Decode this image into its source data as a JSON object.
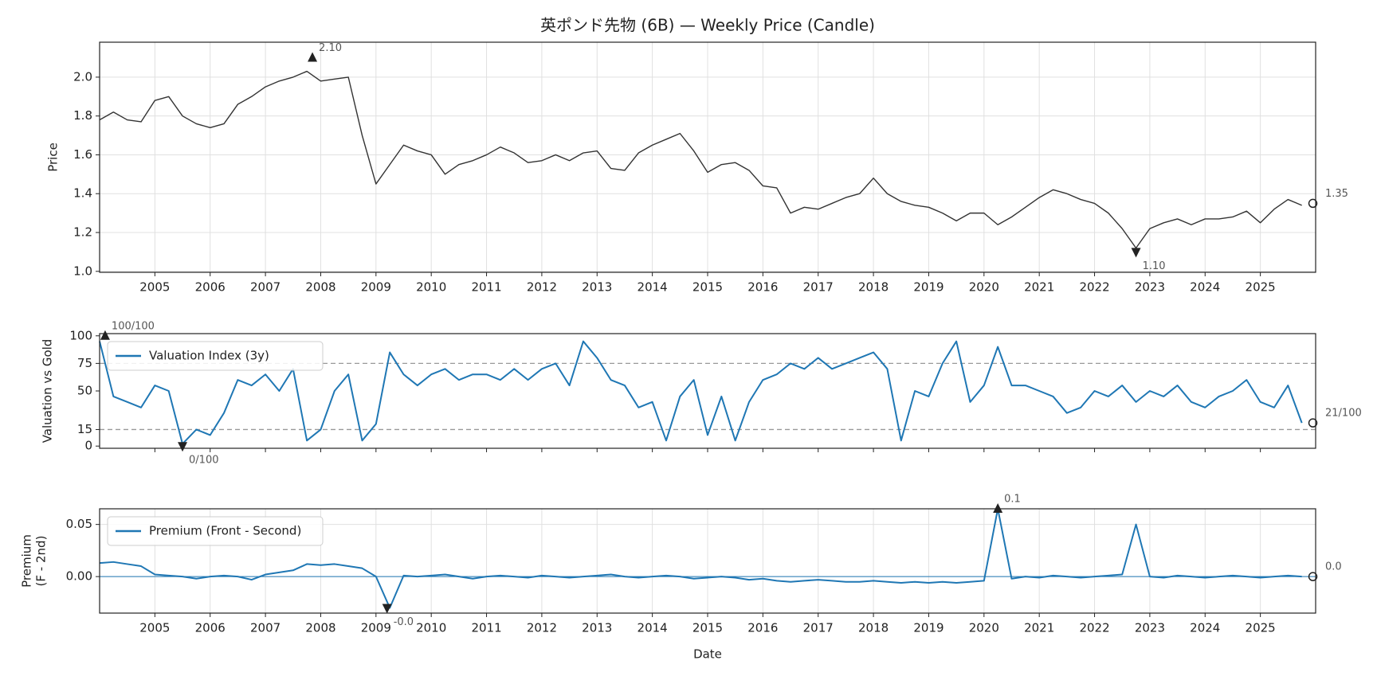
{
  "chart_data": [
    {
      "type": "line",
      "title": "英ポンド先物 (6B) — Weekly Price (Candle)",
      "ylabel": "Price",
      "xlim": [
        2004,
        2026
      ],
      "xticks": [
        2005,
        2006,
        2007,
        2008,
        2009,
        2010,
        2011,
        2012,
        2013,
        2014,
        2015,
        2016,
        2017,
        2018,
        2019,
        2020,
        2021,
        2022,
        2023,
        2024,
        2025
      ],
      "xtick_labels": true,
      "ylim": [
        0.995,
        2.18
      ],
      "yticks": [
        {
          "value": 1,
          "label": "1.0"
        },
        1.2,
        1.4,
        1.6,
        1.8,
        {
          "value": 2,
          "label": "2.0"
        }
      ],
      "grid": true,
      "x": [
        2004,
        2004.25,
        2004.5,
        2004.75,
        2005,
        2005.25,
        2005.5,
        2005.75,
        2006,
        2006.25,
        2006.5,
        2006.75,
        2007,
        2007.25,
        2007.5,
        2007.75,
        2008,
        2008.25,
        2008.5,
        2008.75,
        2009,
        2009.25,
        2009.5,
        2009.75,
        2010,
        2010.25,
        2010.5,
        2010.75,
        2011,
        2011.25,
        2011.5,
        2011.75,
        2012,
        2012.25,
        2012.5,
        2012.75,
        2013,
        2013.25,
        2013.5,
        2013.75,
        2014,
        2014.25,
        2014.5,
        2014.75,
        2015,
        2015.25,
        2015.5,
        2015.75,
        2016,
        2016.25,
        2016.5,
        2016.75,
        2017,
        2017.25,
        2017.5,
        2017.75,
        2018,
        2018.25,
        2018.5,
        2018.75,
        2019,
        2019.25,
        2019.5,
        2019.75,
        2020,
        2020.25,
        2020.5,
        2020.75,
        2021,
        2021.25,
        2021.5,
        2021.75,
        2022,
        2022.25,
        2022.5,
        2022.75,
        2023,
        2023.25,
        2023.5,
        2023.75,
        2024,
        2024.25,
        2024.5,
        2024.75,
        2025,
        2025.25,
        2025.5,
        2025.75
      ],
      "series": [
        {
          "color": "#333333",
          "values": [
            1.78,
            1.82,
            1.78,
            1.77,
            1.88,
            1.9,
            1.8,
            1.76,
            1.74,
            1.76,
            1.86,
            1.9,
            1.95,
            1.98,
            2.0,
            2.03,
            1.98,
            1.99,
            2.0,
            1.7,
            1.45,
            1.55,
            1.65,
            1.62,
            1.6,
            1.5,
            1.55,
            1.57,
            1.6,
            1.64,
            1.61,
            1.56,
            1.57,
            1.6,
            1.57,
            1.61,
            1.62,
            1.53,
            1.52,
            1.61,
            1.65,
            1.68,
            1.71,
            1.62,
            1.51,
            1.55,
            1.56,
            1.52,
            1.44,
            1.43,
            1.3,
            1.33,
            1.32,
            1.35,
            1.38,
            1.4,
            1.48,
            1.4,
            1.36,
            1.34,
            1.33,
            1.3,
            1.26,
            1.3,
            1.3,
            1.24,
            1.28,
            1.33,
            1.38,
            1.42,
            1.4,
            1.37,
            1.35,
            1.3,
            1.22,
            1.12,
            1.22,
            1.25,
            1.27,
            1.24,
            1.27,
            1.27,
            1.28,
            1.31,
            1.25,
            1.32,
            1.37,
            1.34
          ]
        }
      ],
      "annotations": [
        {
          "x": 2007.85,
          "value": 2.1,
          "label": "2.10",
          "marker": "up"
        },
        {
          "x": 2022.75,
          "value": 1.1,
          "label": "1.10",
          "marker": "down"
        },
        {
          "x": 2025.95,
          "value": 1.35,
          "label": "1.35",
          "marker": "circle"
        }
      ]
    },
    {
      "type": "line",
      "ylabel": "Valuation vs Gold",
      "xlim": [
        2004,
        2026
      ],
      "xticks": [
        2005,
        2006,
        2007,
        2008,
        2009,
        2010,
        2011,
        2012,
        2013,
        2014,
        2015,
        2016,
        2017,
        2018,
        2019,
        2020,
        2021,
        2022,
        2023,
        2024,
        2025
      ],
      "xtick_labels": false,
      "ylim": [
        -2,
        102
      ],
      "yticks": [
        0,
        15,
        50,
        75,
        100
      ],
      "grid": false,
      "hlines": [
        {
          "value": 15,
          "style": "dashed"
        },
        {
          "value": 75,
          "style": "dashed"
        }
      ],
      "x": [
        2004,
        2004.25,
        2004.5,
        2004.75,
        2005,
        2005.25,
        2005.5,
        2005.75,
        2006,
        2006.25,
        2006.5,
        2006.75,
        2007,
        2007.25,
        2007.5,
        2007.75,
        2008,
        2008.25,
        2008.5,
        2008.75,
        2009,
        2009.25,
        2009.5,
        2009.75,
        2010,
        2010.25,
        2010.5,
        2010.75,
        2011,
        2011.25,
        2011.5,
        2011.75,
        2012,
        2012.25,
        2012.5,
        2012.75,
        2013,
        2013.25,
        2013.5,
        2013.75,
        2014,
        2014.25,
        2014.5,
        2014.75,
        2015,
        2015.25,
        2015.5,
        2015.75,
        2016,
        2016.25,
        2016.5,
        2016.75,
        2017,
        2017.25,
        2017.5,
        2017.75,
        2018,
        2018.25,
        2018.5,
        2018.75,
        2019,
        2019.25,
        2019.5,
        2019.75,
        2020,
        2020.25,
        2020.5,
        2020.75,
        2021,
        2021.25,
        2021.5,
        2021.75,
        2022,
        2022.25,
        2022.5,
        2022.75,
        2023,
        2023.25,
        2023.5,
        2023.75,
        2024,
        2024.25,
        2024.5,
        2024.75,
        2025,
        2025.25,
        2025.5,
        2025.75
      ],
      "series": [
        {
          "name": "Valuation Index (3y)",
          "color": "#1f77b4",
          "values": [
            95,
            45,
            40,
            35,
            55,
            50,
            2,
            15,
            10,
            30,
            60,
            55,
            65,
            50,
            70,
            5,
            15,
            50,
            65,
            5,
            20,
            85,
            65,
            55,
            65,
            70,
            60,
            65,
            65,
            60,
            70,
            60,
            70,
            75,
            55,
            95,
            80,
            60,
            55,
            35,
            40,
            5,
            45,
            60,
            10,
            45,
            5,
            40,
            60,
            65,
            75,
            70,
            80,
            70,
            75,
            80,
            85,
            70,
            5,
            50,
            45,
            75,
            95,
            40,
            55,
            90,
            55,
            55,
            50,
            45,
            30,
            35,
            50,
            45,
            55,
            40,
            50,
            45,
            55,
            40,
            35,
            45,
            50,
            60,
            40,
            35,
            55,
            21
          ]
        }
      ],
      "annotations": [
        {
          "x": 2004.1,
          "value": 100,
          "label": "100/100",
          "marker": "up"
        },
        {
          "x": 2005.5,
          "value": 0,
          "label": "0/100",
          "marker": "down"
        },
        {
          "x": 2025.95,
          "value": 21,
          "label": "21/100",
          "marker": "circle"
        }
      ]
    },
    {
      "type": "line",
      "ylabel": [
        "Premium",
        "(F - 2nd)"
      ],
      "xlabel": "Date",
      "xlim": [
        2004,
        2026
      ],
      "xticks": [
        2005,
        2006,
        2007,
        2008,
        2009,
        2010,
        2011,
        2012,
        2013,
        2014,
        2015,
        2016,
        2017,
        2018,
        2019,
        2020,
        2021,
        2022,
        2023,
        2024,
        2025
      ],
      "xtick_labels": true,
      "ylim": [
        -0.035,
        0.065
      ],
      "yticks": [
        {
          "value": 0,
          "label": "0.00"
        },
        {
          "value": 0.05,
          "label": "0.05"
        }
      ],
      "grid": true,
      "hlines": [
        {
          "value": 0,
          "style": "solid"
        }
      ],
      "x": [
        2004,
        2004.25,
        2004.5,
        2004.75,
        2005,
        2005.25,
        2005.5,
        2005.75,
        2006,
        2006.25,
        2006.5,
        2006.75,
        2007,
        2007.25,
        2007.5,
        2007.75,
        2008,
        2008.25,
        2008.5,
        2008.75,
        2009,
        2009.25,
        2009.5,
        2009.75,
        2010,
        2010.25,
        2010.5,
        2010.75,
        2011,
        2011.25,
        2011.5,
        2011.75,
        2012,
        2012.25,
        2012.5,
        2012.75,
        2013,
        2013.25,
        2013.5,
        2013.75,
        2014,
        2014.25,
        2014.5,
        2014.75,
        2015,
        2015.25,
        2015.5,
        2015.75,
        2016,
        2016.25,
        2016.5,
        2016.75,
        2017,
        2017.25,
        2017.5,
        2017.75,
        2018,
        2018.25,
        2018.5,
        2018.75,
        2019,
        2019.25,
        2019.5,
        2019.75,
        2020,
        2020.25,
        2020.5,
        2020.75,
        2021,
        2021.25,
        2021.5,
        2021.75,
        2022,
        2022.25,
        2022.5,
        2022.75,
        2023,
        2023.25,
        2023.5,
        2023.75,
        2024,
        2024.25,
        2024.5,
        2024.75,
        2025,
        2025.25,
        2025.5,
        2025.75
      ],
      "series": [
        {
          "name": "Premium (Front - Second)",
          "color": "#1f77b4",
          "values": [
            0.013,
            0.014,
            0.012,
            0.01,
            0.002,
            0.001,
            0,
            -0.002,
            0,
            0.001,
            0,
            -0.003,
            0.002,
            0.004,
            0.006,
            0.012,
            0.011,
            0.012,
            0.01,
            0.008,
            0,
            -0.03,
            0.001,
            0,
            0.001,
            0.002,
            0,
            -0.002,
            0,
            0.001,
            0,
            -0.001,
            0.001,
            0,
            -0.001,
            0,
            0.001,
            0.002,
            0,
            -0.001,
            0,
            0.001,
            0,
            -0.002,
            -0.001,
            0,
            -0.001,
            -0.003,
            -0.002,
            -0.004,
            -0.005,
            -0.004,
            -0.003,
            -0.004,
            -0.005,
            -0.005,
            -0.004,
            -0.005,
            -0.006,
            -0.005,
            -0.006,
            -0.005,
            -0.006,
            -0.005,
            -0.004,
            0.065,
            -0.002,
            0,
            -0.001,
            0.001,
            0,
            -0.001,
            0,
            0.001,
            0.002,
            0.05,
            0,
            -0.001,
            0.001,
            0,
            -0.001,
            0,
            0.001,
            0,
            -0.001,
            0,
            0.001,
            0
          ]
        }
      ],
      "annotations": [
        {
          "x": 2020.25,
          "value": 0.065,
          "label": "0.1",
          "marker": "up"
        },
        {
          "x": 2009.2,
          "value": -0.03,
          "label": "-0.0",
          "marker": "down"
        },
        {
          "x": 2025.95,
          "value": 0,
          "label": "0.0",
          "marker": "circle"
        }
      ]
    }
  ]
}
